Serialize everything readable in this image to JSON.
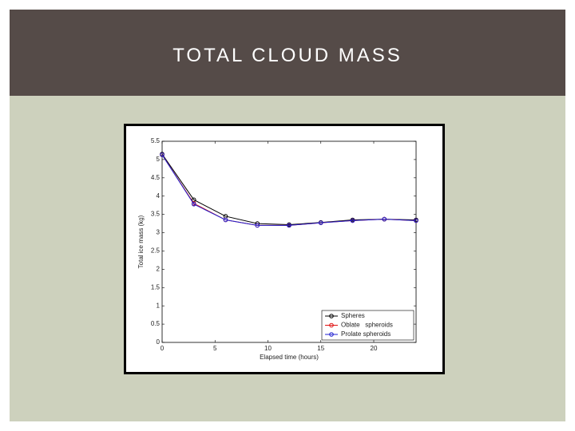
{
  "header": {
    "title": "TOTAL CLOUD MASS"
  },
  "chart_data": {
    "type": "line",
    "xlabel": "Elapsed time (hours)",
    "ylabel": "Total ice mass (kg)",
    "x": [
      0,
      3,
      6,
      9,
      12,
      15,
      18,
      21,
      24
    ],
    "series": [
      {
        "name": "Spheres",
        "color": "#000000",
        "values": [
          5.15,
          3.9,
          3.45,
          3.25,
          3.22,
          3.28,
          3.35,
          3.37,
          3.35
        ]
      },
      {
        "name": "Oblate   spheroids",
        "color": "#e01010",
        "values": [
          5.13,
          3.8,
          3.35,
          3.2,
          3.2,
          3.27,
          3.33,
          3.37,
          3.33
        ]
      },
      {
        "name": "Prolate spheroids",
        "color": "#2020d0",
        "values": [
          5.13,
          3.78,
          3.35,
          3.2,
          3.2,
          3.27,
          3.33,
          3.37,
          3.33
        ]
      }
    ],
    "xlim": [
      0,
      24
    ],
    "xticks": [
      0,
      5,
      10,
      15,
      20
    ],
    "ylim": [
      0,
      5.5
    ],
    "yticks": [
      0,
      0.5,
      1,
      1.5,
      2,
      2.5,
      3,
      3.5,
      4,
      4.5,
      5,
      5.5
    ],
    "legend": "lower-right"
  }
}
